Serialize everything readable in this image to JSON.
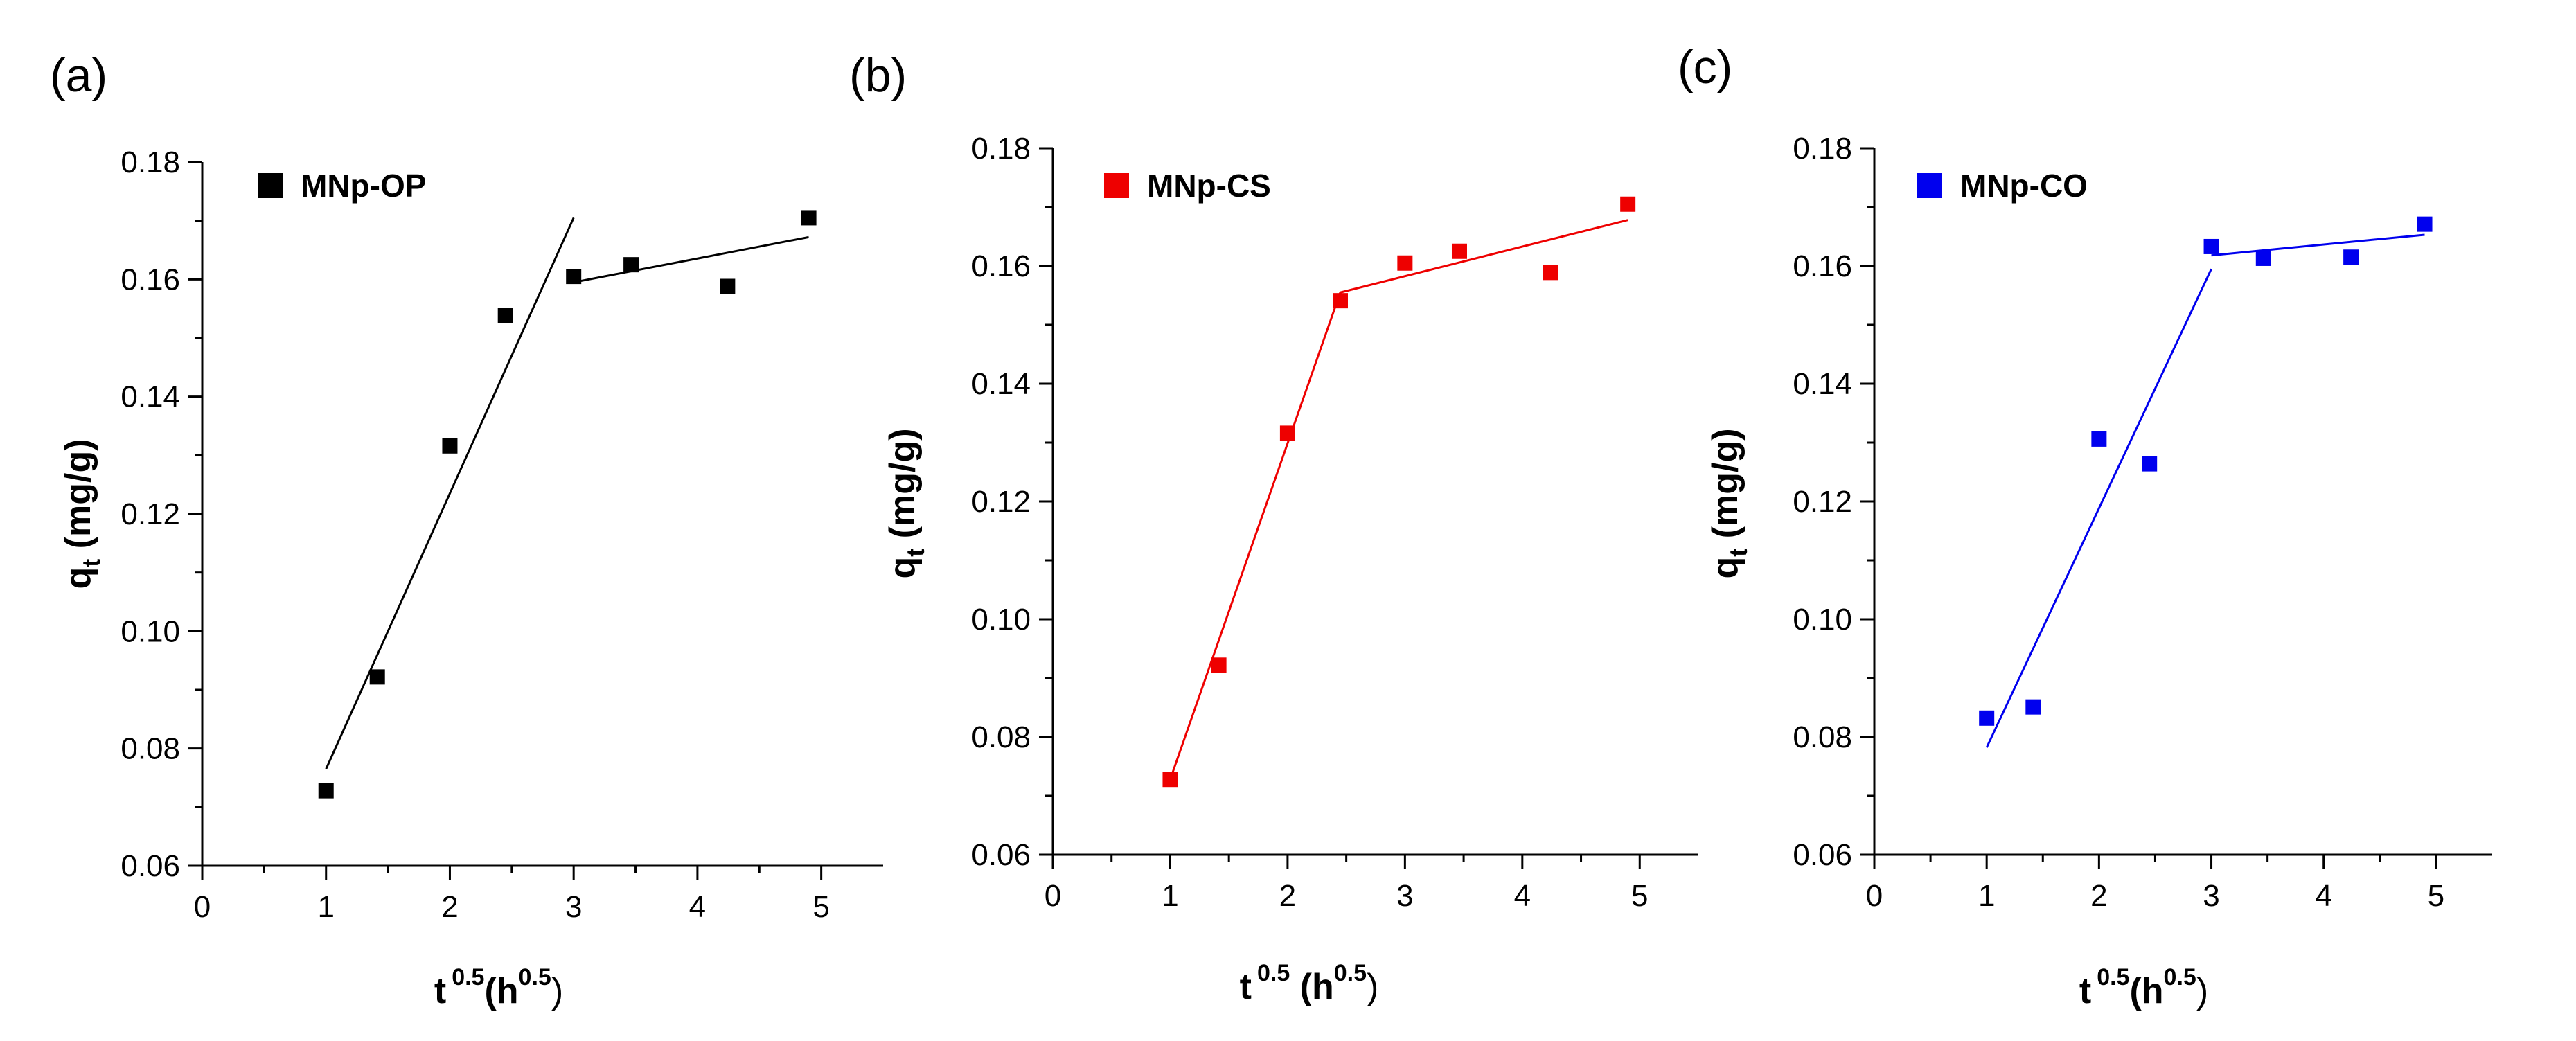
{
  "chart_data": [
    {
      "type": "scatter",
      "panel_label": "(a)",
      "legend": "MNp-OP",
      "color": "#000000",
      "xlabel": {
        "base": "t",
        "sup": "0.5",
        "paren_open": "(h",
        "unit_sup": "0.5",
        "paren_close": ")"
      },
      "ylabel": {
        "base": "q",
        "sub": "t",
        "rest": " (mg/g)"
      },
      "xlim": [
        0,
        5.5
      ],
      "ylim": [
        0.06,
        0.18
      ],
      "xticks": [
        "0",
        "1",
        "2",
        "3",
        "4",
        "5"
      ],
      "yticks": [
        "0.06",
        "0.08",
        "0.10",
        "0.12",
        "0.14",
        "0.16",
        "0.18"
      ],
      "points": [
        [
          1.0,
          0.0728
        ],
        [
          1.414,
          0.0922
        ],
        [
          2.0,
          0.1316
        ],
        [
          2.449,
          0.1538
        ],
        [
          3.0,
          0.1605
        ],
        [
          3.464,
          0.1625
        ],
        [
          4.243,
          0.1588
        ],
        [
          4.899,
          0.1705
        ]
      ],
      "fit_lines": [
        [
          [
            1.0,
            0.0765
          ],
          [
            3.0,
            0.1705
          ]
        ],
        [
          [
            3.0,
            0.1595
          ],
          [
            4.899,
            0.1672
          ]
        ]
      ]
    },
    {
      "type": "scatter",
      "panel_label": "(b)",
      "legend": "MNp-CS",
      "color": "#ee0000",
      "xlabel": {
        "base": "t",
        "sup": "0.5",
        "paren_open": " (h",
        "unit_sup": "0.5",
        "paren_close": ")"
      },
      "ylabel": {
        "base": "q",
        "sub": "t",
        "rest": " (mg/g)"
      },
      "xlim": [
        0,
        5.5
      ],
      "ylim": [
        0.06,
        0.18
      ],
      "xticks": [
        "0",
        "1",
        "2",
        "3",
        "4",
        "5"
      ],
      "yticks": [
        "0.06",
        "0.08",
        "0.10",
        "0.12",
        "0.14",
        "0.16",
        "0.18"
      ],
      "points": [
        [
          1.0,
          0.0728
        ],
        [
          1.414,
          0.0922
        ],
        [
          2.0,
          0.1316
        ],
        [
          2.449,
          0.1541
        ],
        [
          3.0,
          0.1605
        ],
        [
          3.464,
          0.1625
        ],
        [
          4.243,
          0.1589
        ],
        [
          4.899,
          0.1705
        ]
      ],
      "fit_lines": [
        [
          [
            1.0,
            0.0728
          ],
          [
            2.449,
            0.1555
          ]
        ],
        [
          [
            2.449,
            0.1555
          ],
          [
            4.899,
            0.1678
          ]
        ]
      ]
    },
    {
      "type": "scatter",
      "panel_label": "(c)",
      "legend": "MNp-CO",
      "color": "#0000ee",
      "xlabel": {
        "base": "t",
        "sup": "0.5",
        "paren_open": "(h",
        "unit_sup": "0.5",
        "paren_close": ")"
      },
      "ylabel": {
        "base": "q",
        "sub": "t",
        "rest": " (mg/g)"
      },
      "xlim": [
        0,
        5.5
      ],
      "ylim": [
        0.06,
        0.18
      ],
      "xticks": [
        "0",
        "1",
        "2",
        "3",
        "4",
        "5"
      ],
      "yticks": [
        "0.06",
        "0.08",
        "0.10",
        "0.12",
        "0.14",
        "0.16",
        "0.18"
      ],
      "points": [
        [
          1.0,
          0.0832
        ],
        [
          1.414,
          0.0851
        ],
        [
          2.0,
          0.1306
        ],
        [
          2.449,
          0.1264
        ],
        [
          3.0,
          0.1633
        ],
        [
          3.464,
          0.1613
        ],
        [
          4.243,
          0.1615
        ],
        [
          4.899,
          0.1671
        ]
      ],
      "fit_lines": [
        [
          [
            1.0,
            0.0782
          ],
          [
            3.0,
            0.1595
          ]
        ],
        [
          [
            3.0,
            0.1618
          ],
          [
            4.899,
            0.1653
          ]
        ]
      ]
    }
  ]
}
